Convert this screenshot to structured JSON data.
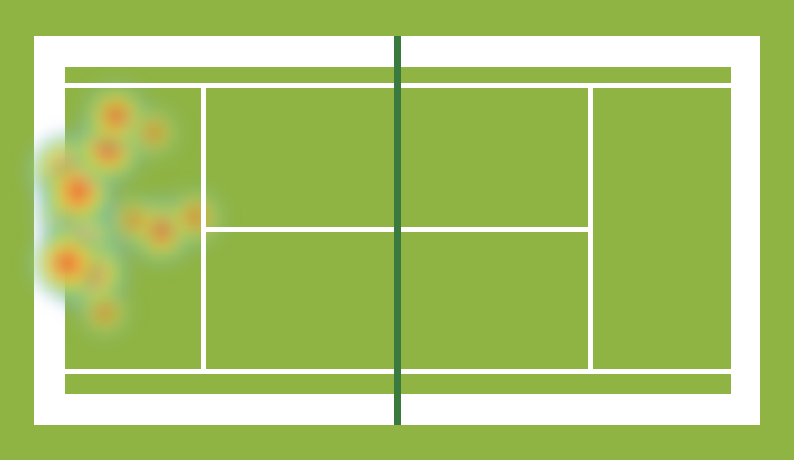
{
  "view": {
    "type": "tennis-court-heatmap",
    "player_side": "left"
  },
  "colors": {
    "grass": "#8fb443",
    "lines": "#ffffff",
    "net": "#3b7a3e",
    "heat_low": "#5fd040",
    "heat_mid": "#f2e85a",
    "heat_high": "#e8402a",
    "heat_edge": "#9aa8ff"
  },
  "heatmap": {
    "points": [
      {
        "u": 0.12,
        "v": 0.32,
        "w": 1.0
      },
      {
        "u": 0.14,
        "v": 0.45,
        "w": 1.0
      },
      {
        "u": 0.16,
        "v": 0.55,
        "w": 1.0
      },
      {
        "u": 0.18,
        "v": 0.63,
        "w": 1.0
      },
      {
        "u": 0.12,
        "v": 0.6,
        "w": 0.9
      },
      {
        "u": 0.15,
        "v": 0.38,
        "w": 0.9
      },
      {
        "u": 0.23,
        "v": 0.25,
        "w": 0.85
      },
      {
        "u": 0.25,
        "v": 0.15,
        "w": 0.7
      },
      {
        "u": 0.37,
        "v": 0.5,
        "w": 0.75
      },
      {
        "u": 0.46,
        "v": 0.46,
        "w": 0.45
      },
      {
        "u": 0.35,
        "v": 0.2,
        "w": 0.3
      },
      {
        "u": 0.3,
        "v": 0.47,
        "w": 0.3
      },
      {
        "u": 0.22,
        "v": 0.75,
        "w": 0.3
      }
    ]
  }
}
